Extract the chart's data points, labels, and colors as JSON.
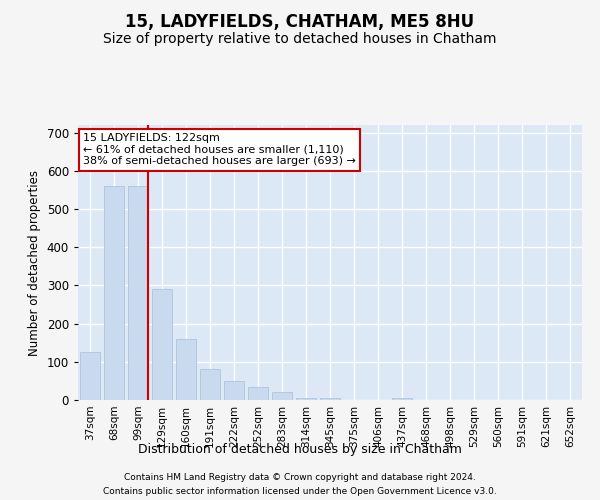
{
  "title1": "15, LADYFIELDS, CHATHAM, ME5 8HU",
  "title2": "Size of property relative to detached houses in Chatham",
  "xlabel": "Distribution of detached houses by size in Chatham",
  "ylabel": "Number of detached properties",
  "categories": [
    "37sqm",
    "68sqm",
    "99sqm",
    "129sqm",
    "160sqm",
    "191sqm",
    "222sqm",
    "252sqm",
    "283sqm",
    "314sqm",
    "345sqm",
    "375sqm",
    "406sqm",
    "437sqm",
    "468sqm",
    "498sqm",
    "529sqm",
    "560sqm",
    "591sqm",
    "621sqm",
    "652sqm"
  ],
  "values": [
    125,
    560,
    560,
    290,
    160,
    80,
    50,
    35,
    20,
    5,
    5,
    0,
    0,
    5,
    0,
    0,
    0,
    0,
    0,
    0,
    0
  ],
  "bar_color": "#c9d9ee",
  "bar_edgecolor": "#a8bfd8",
  "annotation_text": "15 LADYFIELDS: 122sqm\n← 61% of detached houses are smaller (1,110)\n38% of semi-detached houses are larger (693) →",
  "annotation_box_facecolor": "#ffffff",
  "annotation_box_edgecolor": "#cc0000",
  "footnote1": "Contains HM Land Registry data © Crown copyright and database right 2024.",
  "footnote2": "Contains public sector information licensed under the Open Government Licence v3.0.",
  "ylim": [
    0,
    720
  ],
  "yticks": [
    0,
    100,
    200,
    300,
    400,
    500,
    600,
    700
  ],
  "fig_bg_color": "#f5f5f5",
  "plot_bg_color": "#dce8f5",
  "grid_color": "#ffffff",
  "title1_fontsize": 12,
  "title2_fontsize": 10,
  "red_line_color": "#cc0000",
  "red_line_x": 2.425
}
